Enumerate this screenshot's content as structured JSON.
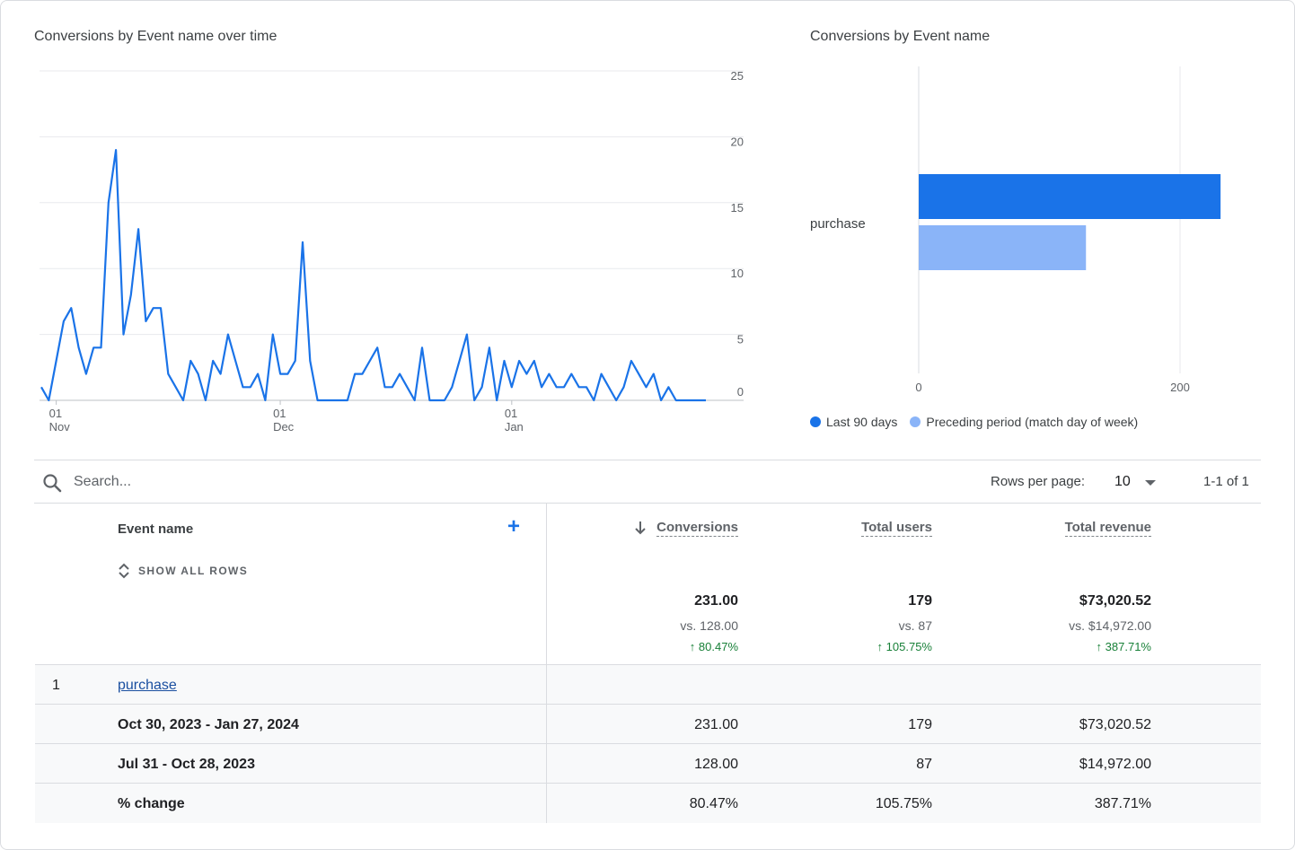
{
  "line_chart": {
    "title": "Conversions by Event name over time",
    "y_ticks": [
      "25",
      "20",
      "15",
      "10",
      "5",
      "0"
    ],
    "x_ticks": [
      {
        "day": "01",
        "month": "Nov"
      },
      {
        "day": "01",
        "month": "Dec"
      },
      {
        "day": "01",
        "month": "Jan"
      }
    ]
  },
  "bar_chart": {
    "title": "Conversions by Event name",
    "category_label": "purchase",
    "x_ticks": [
      "0",
      "200"
    ],
    "legend": [
      {
        "label": "Last 90 days",
        "color": "#1a73e8"
      },
      {
        "label": "Preceding period (match day of week)",
        "color": "#8ab4f8"
      }
    ]
  },
  "chart_data": [
    {
      "type": "line",
      "title": "Conversions by Event name over time",
      "x_start": "Oct 30, 2023",
      "x_end": "Jan 27, 2024",
      "ylim": [
        0,
        25
      ],
      "series": [
        {
          "color": "#1a73e8",
          "values": [
            1,
            0,
            3,
            6,
            7,
            4,
            2,
            4,
            4,
            15,
            19,
            5,
            8,
            13,
            6,
            7,
            7,
            2,
            1,
            0,
            3,
            2,
            0,
            3,
            2,
            5,
            3,
            1,
            1,
            2,
            0,
            5,
            2,
            2,
            3,
            12,
            3,
            0,
            0,
            0,
            0,
            0,
            2,
            2,
            3,
            4,
            1,
            1,
            2,
            1,
            0,
            4,
            0,
            0,
            0,
            1,
            3,
            5,
            0,
            1,
            4,
            0,
            3,
            1,
            3,
            2,
            3,
            1,
            2,
            1,
            1,
            2,
            1,
            1,
            0,
            2,
            1,
            0,
            1,
            3,
            2,
            1,
            2,
            0,
            1,
            0,
            0,
            0,
            0,
            0
          ]
        }
      ]
    },
    {
      "type": "bar",
      "title": "Conversions by Event name",
      "categories": [
        "purchase"
      ],
      "xlim": [
        0,
        250
      ],
      "series": [
        {
          "name": "Last 90 days",
          "values": [
            231
          ]
        },
        {
          "name": "Preceding period (match day of week)",
          "values": [
            128
          ]
        }
      ]
    }
  ],
  "toolbar": {
    "search_placeholder": "Search...",
    "rows_per_page_label": "Rows per page:",
    "rows_per_page_value": "10",
    "pagination": "1-1 of 1"
  },
  "table": {
    "event_header": "Event name",
    "show_all_rows": "SHOW ALL ROWS",
    "columns": [
      {
        "label": "Conversions",
        "total": "231.00",
        "vs": "vs. 128.00",
        "change": "80.47%"
      },
      {
        "label": "Total users",
        "total": "179",
        "vs": "vs. 87",
        "change": "105.75%"
      },
      {
        "label": "Total revenue",
        "total": "$73,020.52",
        "vs": "vs. $14,972.00",
        "change": "387.71%"
      }
    ],
    "rows": [
      {
        "index": "1",
        "event": "purchase"
      },
      {
        "label": "Oct 30, 2023 - Jan 27, 2024",
        "values": [
          "231.00",
          "179",
          "$73,020.52"
        ]
      },
      {
        "label": "Jul 31 - Oct 28, 2023",
        "values": [
          "128.00",
          "87",
          "$14,972.00"
        ]
      },
      {
        "label": "% change",
        "values": [
          "80.47%",
          "105.75%",
          "387.71%"
        ]
      }
    ]
  }
}
